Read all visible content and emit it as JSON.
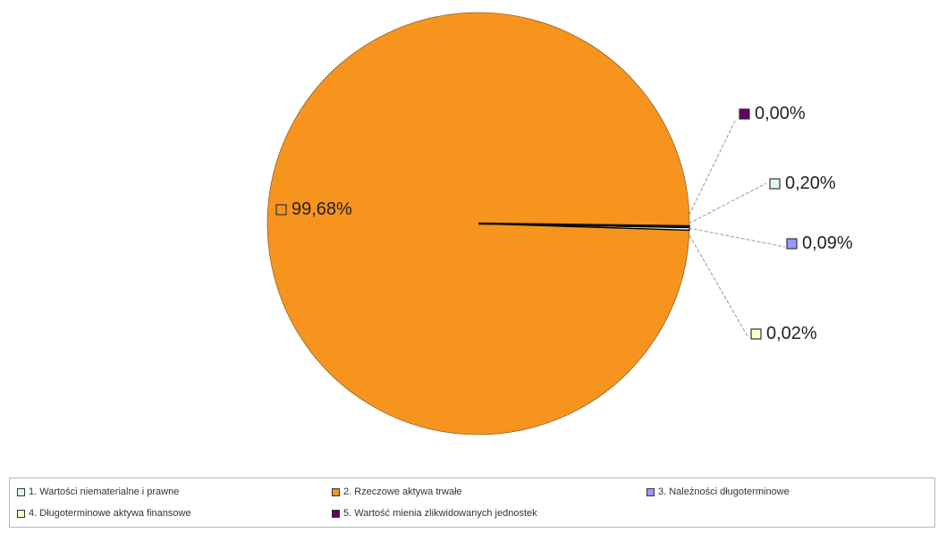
{
  "chart_data": {
    "type": "pie",
    "title": "",
    "slices": [
      {
        "name": "1. Wartości niematerialne i prawne",
        "value": 0.2,
        "label": "0,20%",
        "color": "#e3f5f5"
      },
      {
        "name": "2. Rzeczowe aktywa trwałe",
        "value": 99.68,
        "label": "99,68%",
        "color": "#f7941d"
      },
      {
        "name": "3. Należności długoterminowe",
        "value": 0.09,
        "label": "0,09%",
        "color": "#9999ff"
      },
      {
        "name": "4. Długoterminowe aktywa finansowe",
        "value": 0.02,
        "label": "0,02%",
        "color": "#ffffcc"
      },
      {
        "name": "5. Wartość mienia zlikwidowanych jednostek",
        "value": 0.0,
        "label": "0,00%",
        "color": "#660066"
      }
    ],
    "legend_position": "bottom"
  }
}
